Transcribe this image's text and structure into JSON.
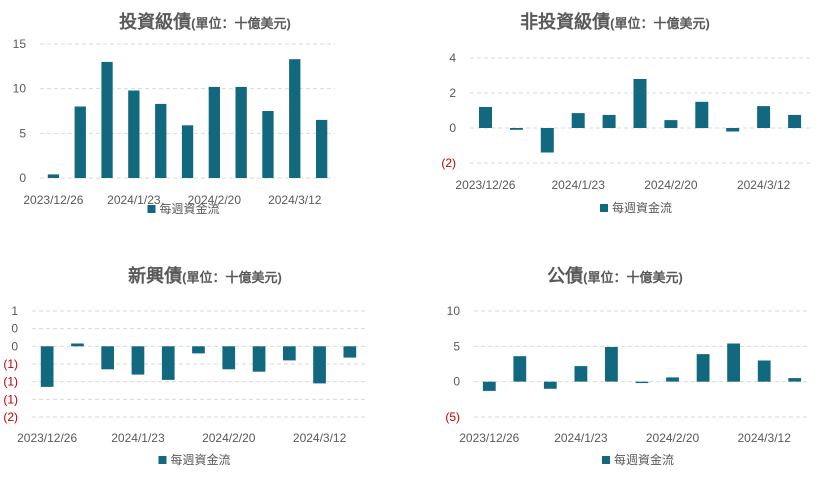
{
  "colors": {
    "bar": "#12697F",
    "grid": "#D9D9D9",
    "axis_text": "#595959",
    "negative_text": "#C00000",
    "title_text": "#595959"
  },
  "chart_data": [
    {
      "type": "bar",
      "title": "投資級債",
      "title_unit": "(單位：十億美元)",
      "legend": "每週資金流",
      "legend_position": "bottom",
      "x_tick_labels": [
        "2023/12/26",
        "2024/1/23",
        "2024/2/20",
        "2024/3/12"
      ],
      "y_ticks": [
        0,
        5,
        10,
        15
      ],
      "y_tick_labels": [
        "0",
        "5",
        "10",
        "15"
      ],
      "ylim": [
        0,
        15
      ],
      "grid": true,
      "series": [
        {
          "name": "每週資金流",
          "values": [
            0.4,
            8.0,
            13.0,
            9.8,
            8.3,
            5.9,
            10.2,
            10.2,
            7.5,
            13.3,
            6.5
          ]
        }
      ]
    },
    {
      "type": "bar",
      "title": "非投資級債",
      "title_unit": "(單位：十億美元)",
      "legend": "每週資金流",
      "legend_position": "bottom",
      "x_tick_labels": [
        "2023/12/26",
        "2024/1/23",
        "2024/2/20",
        "2024/3/12"
      ],
      "y_ticks": [
        -2,
        0,
        2,
        4
      ],
      "y_tick_labels": [
        "(2)",
        "0",
        "2",
        "4"
      ],
      "ylim": [
        -2,
        4
      ],
      "grid": true,
      "series": [
        {
          "name": "每週資金流",
          "values": [
            1.2,
            -0.1,
            -1.4,
            0.85,
            0.75,
            2.8,
            0.45,
            1.5,
            -0.2,
            1.25,
            0.75
          ]
        }
      ]
    },
    {
      "type": "bar",
      "title": "新興債",
      "title_unit": "(單位：十億美元)",
      "legend": "每週資金流",
      "legend_position": "bottom",
      "x_tick_labels": [
        "2023/12/26",
        "2024/1/23",
        "2024/2/20",
        "2024/3/12"
      ],
      "y_ticks": [
        -2,
        -1.5,
        -1,
        -0.5,
        0,
        0.5,
        1
      ],
      "y_tick_labels": [
        "(2)",
        "(1)",
        "(1)",
        "(1)",
        "0",
        "0",
        "1"
      ],
      "ylim": [
        -2,
        1
      ],
      "grid": true,
      "series": [
        {
          "name": "每週資金流",
          "values": [
            -1.15,
            0.08,
            -0.65,
            -0.8,
            -0.95,
            -0.2,
            -0.65,
            -0.72,
            -0.4,
            -1.05,
            -0.32
          ]
        }
      ]
    },
    {
      "type": "bar",
      "title": "公債",
      "title_unit": "(單位：十億美元)",
      "legend": "每週資金流",
      "legend_position": "bottom",
      "x_tick_labels": [
        "2023/12/26",
        "2024/1/23",
        "2024/2/20",
        "2024/3/12"
      ],
      "y_ticks": [
        -5,
        0,
        5,
        10
      ],
      "y_tick_labels": [
        "(5)",
        "0",
        "5",
        "10"
      ],
      "ylim": [
        -5,
        10
      ],
      "grid": true,
      "series": [
        {
          "name": "每週資金流",
          "values": [
            -1.3,
            3.6,
            -1.0,
            2.2,
            4.9,
            -0.2,
            0.6,
            3.9,
            5.4,
            3.0,
            0.5
          ]
        }
      ]
    }
  ]
}
